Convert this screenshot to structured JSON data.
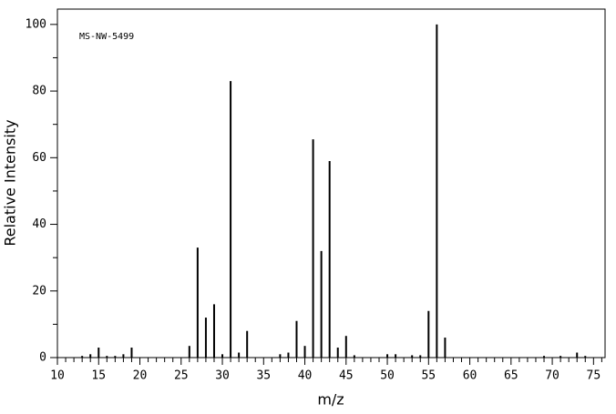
{
  "chart_data": {
    "type": "bar",
    "annotation": "MS-NW-5499",
    "xlabel": "m/z",
    "ylabel": "Relative Intensity",
    "x": [
      13,
      14,
      15,
      16,
      17,
      18,
      19,
      26,
      27,
      28,
      29,
      30,
      31,
      32,
      33,
      37,
      38,
      39,
      40,
      41,
      42,
      43,
      44,
      45,
      46,
      50,
      51,
      53,
      54,
      55,
      56,
      57,
      69,
      71,
      73,
      74
    ],
    "values": [
      0.5,
      1,
      3,
      0.5,
      0.5,
      1,
      3,
      3.5,
      33,
      12,
      16,
      1,
      83,
      1.5,
      8,
      1,
      1.5,
      11,
      3.5,
      65.5,
      32,
      59,
      3,
      6.5,
      0.7,
      1,
      1,
      0.7,
      0.7,
      14,
      100,
      6,
      0.5,
      0.5,
      1.5,
      0.5
    ],
    "color": "#000000",
    "xlim": [
      10,
      76.4
    ],
    "ylim": [
      0,
      104.6
    ],
    "xticks": [
      10,
      15,
      20,
      25,
      30,
      35,
      40,
      45,
      50,
      55,
      60,
      65,
      70,
      75
    ],
    "xminorticks": [
      11,
      12,
      13,
      14,
      16,
      17,
      18,
      19,
      21,
      22,
      23,
      24,
      26,
      27,
      28,
      29,
      31,
      32,
      33,
      34,
      36,
      37,
      38,
      39,
      41,
      42,
      43,
      44,
      46,
      47,
      48,
      49,
      51,
      52,
      53,
      54,
      56,
      57,
      58,
      59,
      61,
      62,
      63,
      64,
      66,
      67,
      68,
      69,
      71,
      72,
      73,
      74,
      76
    ],
    "yticks": [
      0,
      20,
      40,
      60,
      80,
      100
    ],
    "yminorticks": [
      10,
      30,
      50,
      70,
      90
    ]
  }
}
